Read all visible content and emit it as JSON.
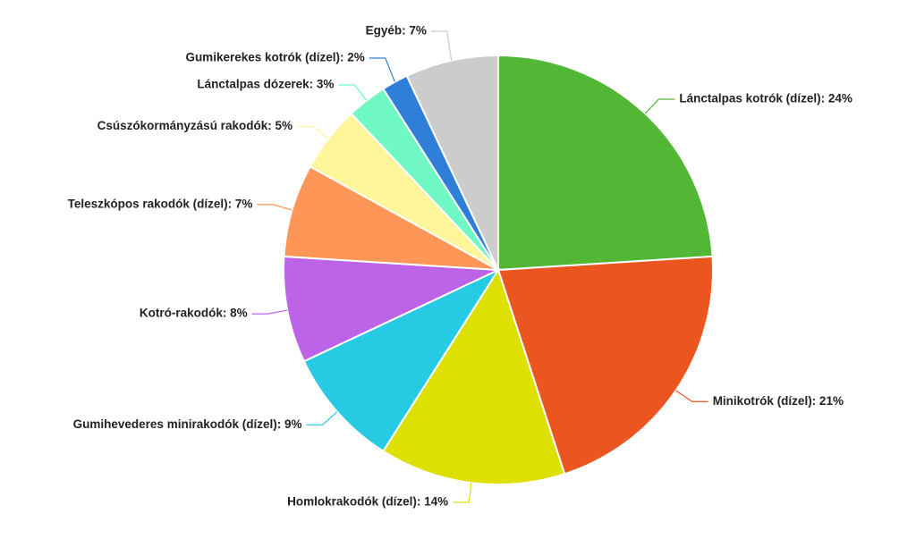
{
  "chart_data": {
    "type": "pie",
    "values": [
      24,
      21,
      14,
      9,
      8,
      7,
      5,
      3,
      2,
      7
    ],
    "value_labels": [
      "Lánctalpas kotrók (dízel): 24%",
      "Minikotrók (dízel): 21%",
      "Homlokrakodók (dízel): 14%",
      "Gumihevederes minirakodók (dízel): 9%",
      "Kotró-rakodók: 8%",
      "Teleszkópos rakodók (dízel): 7%",
      "Csúszókormányzású rakodók: 5%",
      "Lánctalpas dózerek: 3%",
      "Gumikerekes kotrók (dízel): 2%",
      "Egyéb: 7%"
    ],
    "colors": [
      "#52b734",
      "#eb5620",
      "#dde000",
      "#26cbe3",
      "#bd63e8",
      "#fe9658",
      "#fff59a",
      "#6ff7c4",
      "#2f7ed8",
      "#cccccc"
    ]
  }
}
